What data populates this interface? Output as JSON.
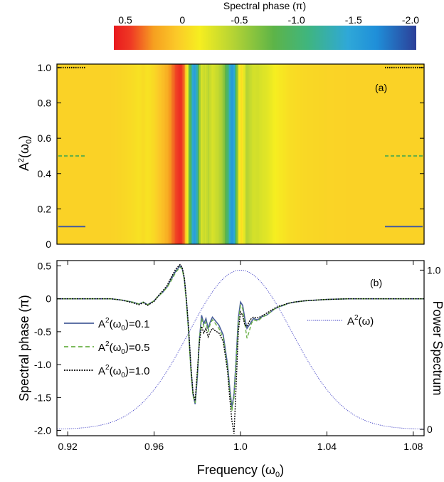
{
  "colorbar": {
    "title": "Spectral phase (π)",
    "tick_labels": [
      "0.5",
      "0",
      "-0.5",
      "-1.0",
      "-1.5",
      "-2.0"
    ],
    "tick_values": [
      0.5,
      0,
      -0.5,
      -1.0,
      -1.5,
      -2.0
    ],
    "range": [
      0.6,
      -2.05
    ],
    "colors": [
      {
        "v": 0.6,
        "c": "#e8191e"
      },
      {
        "v": 0.45,
        "c": "#ef3a24"
      },
      {
        "v": 0.25,
        "c": "#f6a020"
      },
      {
        "v": 0.05,
        "c": "#fbc928"
      },
      {
        "v": -0.15,
        "c": "#f6ee20"
      },
      {
        "v": -0.45,
        "c": "#b4d334"
      },
      {
        "v": -0.8,
        "c": "#5db448"
      },
      {
        "v": -1.1,
        "c": "#3fb57f"
      },
      {
        "v": -1.45,
        "c": "#2fa8d8"
      },
      {
        "v": -1.7,
        "c": "#1f8fd9"
      },
      {
        "v": -2.05,
        "c": "#2c3f98"
      }
    ]
  },
  "panel_a": {
    "label": "(a)",
    "ylabel": "A²(ω₀)",
    "ylabel_main": "A",
    "ylabel_sup": "2",
    "ylabel_rest": "(ω",
    "ylabel_sub": "0",
    "ylabel_end": ")",
    "yticks": [
      "0",
      "0.2",
      "0.4",
      "0.6",
      "0.8",
      "1.0"
    ],
    "ytick_values": [
      0,
      0.2,
      0.4,
      0.6,
      0.8,
      1.0
    ],
    "ylim": [
      0,
      1.02
    ],
    "markers": [
      {
        "level": 0.1,
        "style": "solid",
        "color": "#4a5f9a"
      },
      {
        "level": 0.5,
        "style": "dashed",
        "color": "#6ab046"
      },
      {
        "level": 1.0,
        "style": "dotted",
        "color": "#000000"
      }
    ]
  },
  "chart_data": {
    "type": "line",
    "label": "(b)",
    "xlabel": "Frequency (ω₀)",
    "xlabel_main": "Frequency (ω",
    "xlabel_sub": "0",
    "xlabel_end": ")",
    "ylabel": "Spectral phase (π)",
    "ylabel2": "Power Spectrum",
    "xlim": [
      0.915,
      1.085
    ],
    "ylim": [
      -2.08,
      0.58
    ],
    "y2lim": [
      -0.04,
      1.06
    ],
    "xticks": [
      "0.92",
      "0.96",
      "1.0",
      "1.04",
      "1.08"
    ],
    "xtick_values": [
      0.92,
      0.96,
      1.0,
      1.04,
      1.08
    ],
    "yticks": [
      "0.5",
      "0",
      "-0.5",
      "-1.0",
      "-1.5",
      "-2.0"
    ],
    "ytick_values": [
      0.5,
      0,
      -0.5,
      -1.0,
      -1.5,
      -2.0
    ],
    "y2ticks": [
      "1.0",
      "0"
    ],
    "y2tick_values": [
      1.0,
      0
    ],
    "legend": [
      {
        "prefix": "A",
        "sup": "2",
        "mid": "(ω",
        "sub": "0",
        "suffix": ")=0.1",
        "color": "#4a5f9a",
        "style": "solid"
      },
      {
        "prefix": "A",
        "sup": "2",
        "mid": "(ω",
        "sub": "0",
        "suffix": ")=0.5",
        "color": "#6ab046",
        "style": "dashed"
      },
      {
        "prefix": "A",
        "sup": "2",
        "mid": "(ω",
        "sub": "0",
        "suffix": ")=1.0",
        "color": "#000000",
        "style": "dotted"
      }
    ],
    "legend2": {
      "prefix": "A",
      "sup": "2",
      "suffix": "(ω)",
      "color": "#4b4bc8"
    },
    "x": [
      0.915,
      0.92,
      0.93,
      0.94,
      0.945,
      0.95,
      0.953,
      0.955,
      0.957,
      0.96,
      0.962,
      0.964,
      0.966,
      0.968,
      0.97,
      0.972,
      0.973,
      0.974,
      0.975,
      0.976,
      0.977,
      0.978,
      0.979,
      0.98,
      0.981,
      0.982,
      0.983,
      0.984,
      0.985,
      0.986,
      0.987,
      0.988,
      0.99,
      0.992,
      0.994,
      0.995,
      0.996,
      0.997,
      0.998,
      0.999,
      1.0,
      1.001,
      1.002,
      1.003,
      1.004,
      1.005,
      1.006,
      1.008,
      1.01,
      1.012,
      1.014,
      1.016,
      1.018,
      1.02,
      1.022,
      1.025,
      1.03,
      1.035,
      1.04,
      1.05,
      1.06,
      1.07,
      1.08,
      1.085
    ],
    "series": [
      {
        "name": "A²(ω₀)=0.1",
        "color": "#4a5f9a",
        "style": "solid",
        "values": [
          0,
          0,
          0,
          0,
          -0.02,
          -0.05,
          -0.08,
          -0.05,
          -0.09,
          -0.03,
          0.04,
          0.1,
          0.18,
          0.3,
          0.42,
          0.5,
          0.46,
          0.3,
          -0.05,
          -0.5,
          -1.05,
          -1.45,
          -1.6,
          -1.2,
          -0.6,
          -0.25,
          -0.38,
          -0.3,
          -0.45,
          -0.35,
          -0.28,
          -0.32,
          -0.4,
          -0.55,
          -1.0,
          -1.35,
          -1.65,
          -1.45,
          -0.9,
          -0.3,
          -0.05,
          -0.1,
          -0.3,
          -0.45,
          -0.4,
          -0.35,
          -0.3,
          -0.32,
          -0.27,
          -0.25,
          -0.2,
          -0.15,
          -0.12,
          -0.1,
          -0.07,
          -0.05,
          -0.03,
          -0.02,
          -0.01,
          0,
          0,
          0,
          0,
          0
        ]
      },
      {
        "name": "A²(ω₀)=0.5",
        "color": "#6ab046",
        "style": "dashed",
        "values": [
          0,
          0,
          0,
          0,
          -0.02,
          -0.05,
          -0.08,
          -0.05,
          -0.09,
          -0.03,
          0.04,
          0.1,
          0.17,
          0.28,
          0.4,
          0.48,
          0.45,
          0.28,
          -0.08,
          -0.55,
          -1.1,
          -1.48,
          -1.58,
          -1.15,
          -0.6,
          -0.3,
          -0.42,
          -0.35,
          -0.5,
          -0.38,
          -0.32,
          -0.36,
          -0.45,
          -0.6,
          -1.05,
          -1.4,
          -1.7,
          -1.5,
          -0.95,
          -0.35,
          -0.1,
          -0.15,
          -0.38,
          -0.6,
          -0.5,
          -0.38,
          -0.32,
          -0.34,
          -0.28,
          -0.25,
          -0.2,
          -0.15,
          -0.12,
          -0.1,
          -0.07,
          -0.05,
          -0.03,
          -0.02,
          -0.01,
          0,
          0,
          0,
          0,
          0
        ]
      },
      {
        "name": "A²(ω₀)=1.0",
        "color": "#000000",
        "style": "dotted",
        "values": [
          0,
          0,
          0,
          0,
          -0.02,
          -0.06,
          -0.09,
          -0.06,
          -0.1,
          -0.04,
          0.05,
          0.12,
          0.2,
          0.33,
          0.45,
          0.52,
          0.48,
          0.32,
          -0.02,
          -0.45,
          -1.0,
          -1.42,
          -1.55,
          -1.1,
          -0.65,
          -0.42,
          -0.52,
          -0.45,
          -0.58,
          -0.5,
          -0.45,
          -0.48,
          -0.52,
          -0.65,
          -1.1,
          -1.5,
          -1.85,
          -2.05,
          -1.3,
          -0.5,
          -0.2,
          -0.25,
          -0.4,
          -0.42,
          -0.35,
          -0.3,
          -0.28,
          -0.29,
          -0.26,
          -0.22,
          -0.18,
          -0.14,
          -0.11,
          -0.09,
          -0.07,
          -0.05,
          -0.03,
          -0.02,
          -0.01,
          0,
          0,
          0,
          0,
          0
        ]
      }
    ],
    "power_spectrum": {
      "name": "A²(ω)",
      "center": 1.0,
      "fwhm": 0.0565,
      "peak": 1.0,
      "color": "#4b4bc8"
    }
  }
}
